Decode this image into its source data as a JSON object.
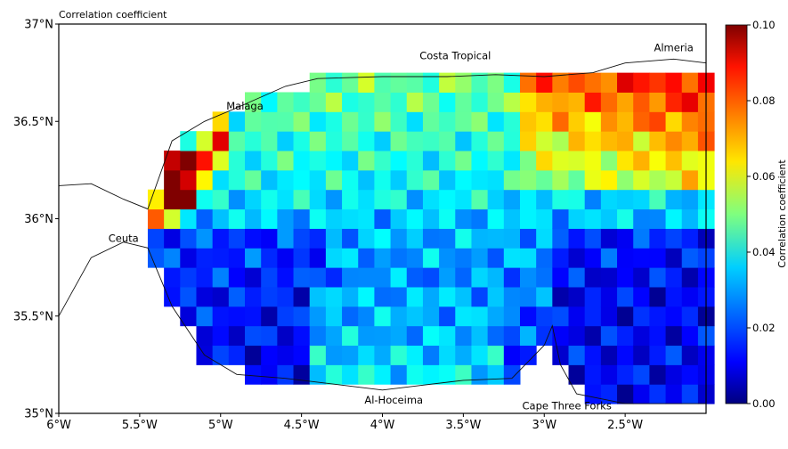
{
  "chart_data": {
    "type": "heatmap",
    "title": "Correlation coefficient",
    "xlabel": "",
    "ylabel": "",
    "x_ticks": [
      {
        "lon": -6.0,
        "label": "6°W"
      },
      {
        "lon": -5.5,
        "label": "5.5°W"
      },
      {
        "lon": -5.0,
        "label": "5°W"
      },
      {
        "lon": -4.5,
        "label": "4.5°W"
      },
      {
        "lon": -4.0,
        "label": "4°W"
      },
      {
        "lon": -3.5,
        "label": "3.5°W"
      },
      {
        "lon": -3.0,
        "label": "3°W"
      },
      {
        "lon": -2.5,
        "label": "2.5°W"
      }
    ],
    "y_ticks": [
      {
        "lat": 37.0,
        "label": "37°N"
      },
      {
        "lat": 36.5,
        "label": "36.5°N"
      },
      {
        "lat": 36.0,
        "label": "36°N"
      },
      {
        "lat": 35.5,
        "label": "35.5°N"
      },
      {
        "lat": 35.0,
        "label": "35°N"
      }
    ],
    "xlim": [
      -6.0,
      -2.0
    ],
    "ylim": [
      35.0,
      37.0
    ],
    "colorbar": {
      "label": "Correlation coefficient",
      "range": [
        0.0,
        0.1
      ],
      "ticks": [
        "0.00",
        "0.02",
        "0.04",
        "0.06",
        "0.08",
        "0.10"
      ],
      "colormap": "jet"
    },
    "places": [
      {
        "name": "Almeria",
        "lon": -2.2,
        "lat": 36.86
      },
      {
        "name": "Costa Tropical",
        "lon": -3.55,
        "lat": 36.82
      },
      {
        "name": "Malaga",
        "lon": -4.85,
        "lat": 36.56
      },
      {
        "name": "Ceuta",
        "lon": -5.6,
        "lat": 35.88
      },
      {
        "name": "Al-Hoceima",
        "lon": -3.93,
        "lat": 35.05
      },
      {
        "name": "Cape Three Forks",
        "lon": -2.86,
        "lat": 35.02
      }
    ],
    "grid_lon_bounds": [
      -5.45,
      -2.0
    ],
    "grid_lat_bounds": [
      35.05,
      36.75
    ],
    "cell_size_deg": 0.05,
    "regions": [
      {
        "name": "far-west-coastal-hotspot",
        "lon": [
          -5.3,
          -5.15
        ],
        "lat": [
          36.1,
          36.35
        ],
        "value": 0.1
      },
      {
        "name": "west-coastal-strip",
        "lon": [
          -5.45,
          -5.05
        ],
        "lat": [
          35.95,
          36.45
        ],
        "value": 0.075
      },
      {
        "name": "northeast-peak",
        "lon": [
          -2.7,
          -2.0
        ],
        "lat": [
          36.4,
          36.75
        ],
        "value": 0.078
      },
      {
        "name": "northeast-band",
        "lon": [
          -3.2,
          -2.0
        ],
        "lat": [
          36.25,
          36.65
        ],
        "value": 0.065
      },
      {
        "name": "northern-central-band",
        "lon": [
          -5.0,
          -3.2
        ],
        "lat": [
          36.05,
          36.55
        ],
        "value": 0.042
      },
      {
        "name": "western-low",
        "lon": [
          -5.45,
          -4.4
        ],
        "lat": [
          35.3,
          36.0
        ],
        "value": 0.01
      },
      {
        "name": "southeast-low",
        "lon": [
          -3.0,
          -2.0
        ],
        "lat": [
          35.1,
          35.9
        ],
        "value": 0.012
      },
      {
        "name": "southern-moderate",
        "lon": [
          -4.5,
          -3.3
        ],
        "lat": [
          35.15,
          35.7
        ],
        "value": 0.033
      },
      {
        "name": "central-moderate",
        "lon": [
          -4.3,
          -2.9
        ],
        "lat": [
          35.7,
          36.05
        ],
        "value": 0.025
      }
    ]
  }
}
